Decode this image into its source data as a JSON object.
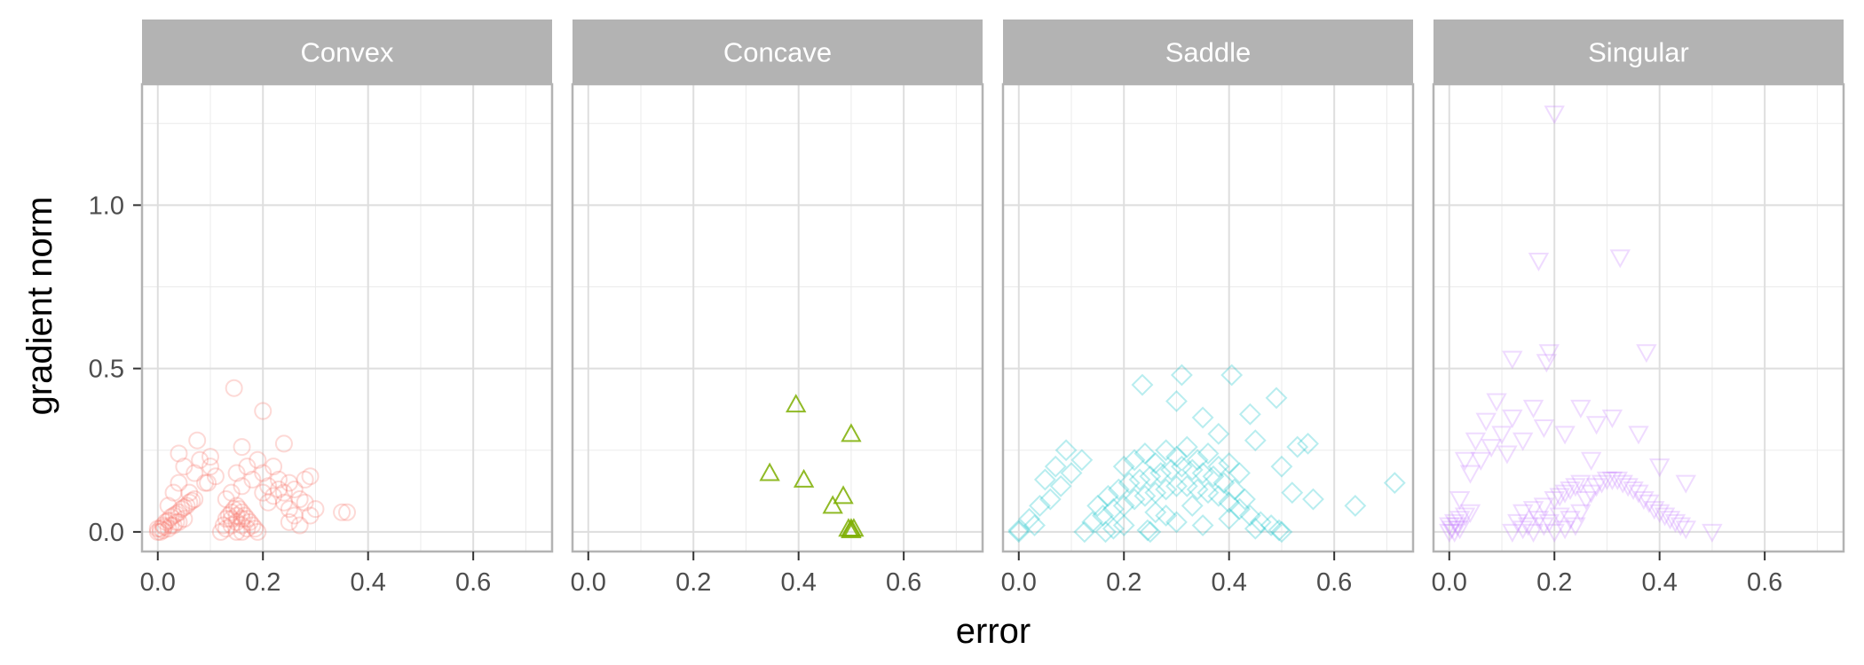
{
  "chart_data": {
    "type": "scatter",
    "facet_by": "surface type",
    "xlabel": "error",
    "ylabel": "gradient norm",
    "xlim": [
      -0.03,
      0.75
    ],
    "ylim": [
      -0.06,
      1.37
    ],
    "x_ticks": [
      0.0,
      0.2,
      0.4,
      0.6
    ],
    "x_tick_labels": [
      "0.0",
      "0.2",
      "0.4",
      "0.6"
    ],
    "y_ticks": [
      0.0,
      0.5,
      1.0
    ],
    "y_tick_labels": [
      "0.0",
      "0.5",
      "1.0"
    ],
    "grid": true,
    "legend": "none",
    "facets": [
      {
        "name": "Convex",
        "marker": "circle",
        "color": "#f8766d",
        "points": [
          [
            0.0,
            0.0
          ],
          [
            0.005,
            0.01
          ],
          [
            0.01,
            0.02
          ],
          [
            0.015,
            0.03
          ],
          [
            0.02,
            0.035
          ],
          [
            0.025,
            0.045
          ],
          [
            0.03,
            0.05
          ],
          [
            0.035,
            0.055
          ],
          [
            0.04,
            0.06
          ],
          [
            0.045,
            0.07
          ],
          [
            0.05,
            0.075
          ],
          [
            0.055,
            0.08
          ],
          [
            0.06,
            0.09
          ],
          [
            0.065,
            0.095
          ],
          [
            0.07,
            0.1
          ],
          [
            0.01,
            0.005
          ],
          [
            0.02,
            0.01
          ],
          [
            0.03,
            0.02
          ],
          [
            0.04,
            0.03
          ],
          [
            0.05,
            0.04
          ],
          [
            0.0,
            0.01
          ],
          [
            0.005,
            0.0
          ],
          [
            0.012,
            0.015
          ],
          [
            0.025,
            0.02
          ],
          [
            0.035,
            0.03
          ],
          [
            0.02,
            0.08
          ],
          [
            0.03,
            0.12
          ],
          [
            0.04,
            0.15
          ],
          [
            0.05,
            0.2
          ],
          [
            0.06,
            0.12
          ],
          [
            0.07,
            0.18
          ],
          [
            0.08,
            0.22
          ],
          [
            0.09,
            0.15
          ],
          [
            0.1,
            0.2
          ],
          [
            0.11,
            0.17
          ],
          [
            0.075,
            0.28
          ],
          [
            0.04,
            0.24
          ],
          [
            0.12,
            0.0
          ],
          [
            0.125,
            0.02
          ],
          [
            0.13,
            0.04
          ],
          [
            0.135,
            0.05
          ],
          [
            0.14,
            0.06
          ],
          [
            0.145,
            0.07
          ],
          [
            0.15,
            0.08
          ],
          [
            0.155,
            0.07
          ],
          [
            0.16,
            0.06
          ],
          [
            0.165,
            0.05
          ],
          [
            0.17,
            0.04
          ],
          [
            0.175,
            0.03
          ],
          [
            0.18,
            0.02
          ],
          [
            0.185,
            0.01
          ],
          [
            0.19,
            0.0
          ],
          [
            0.13,
            0.01
          ],
          [
            0.14,
            0.02
          ],
          [
            0.15,
            0.03
          ],
          [
            0.16,
            0.02
          ],
          [
            0.17,
            0.01
          ],
          [
            0.15,
            0.0
          ],
          [
            0.16,
            0.0
          ],
          [
            0.14,
            0.04
          ],
          [
            0.15,
            0.05
          ],
          [
            0.16,
            0.04
          ],
          [
            0.13,
            0.1
          ],
          [
            0.14,
            0.12
          ],
          [
            0.15,
            0.18
          ],
          [
            0.16,
            0.14
          ],
          [
            0.17,
            0.2
          ],
          [
            0.18,
            0.16
          ],
          [
            0.19,
            0.22
          ],
          [
            0.2,
            0.18
          ],
          [
            0.21,
            0.14
          ],
          [
            0.22,
            0.2
          ],
          [
            0.23,
            0.16
          ],
          [
            0.24,
            0.12
          ],
          [
            0.25,
            0.15
          ],
          [
            0.26,
            0.13
          ],
          [
            0.27,
            0.1
          ],
          [
            0.28,
            0.16
          ],
          [
            0.29,
            0.17
          ],
          [
            0.2,
            0.12
          ],
          [
            0.21,
            0.09
          ],
          [
            0.22,
            0.11
          ],
          [
            0.23,
            0.13
          ],
          [
            0.24,
            0.09
          ],
          [
            0.25,
            0.07
          ],
          [
            0.26,
            0.05
          ],
          [
            0.27,
            0.02
          ],
          [
            0.145,
            0.44
          ],
          [
            0.2,
            0.37
          ],
          [
            0.16,
            0.26
          ],
          [
            0.24,
            0.27
          ],
          [
            0.095,
            0.15
          ],
          [
            0.1,
            0.23
          ],
          [
            0.35,
            0.06
          ],
          [
            0.36,
            0.06
          ],
          [
            0.3,
            0.07
          ],
          [
            0.29,
            0.05
          ],
          [
            0.25,
            0.03
          ],
          [
            0.28,
            0.09
          ]
        ]
      },
      {
        "name": "Concave",
        "marker": "triangle",
        "color": "#7cae00",
        "points": [
          [
            0.395,
            0.39
          ],
          [
            0.5,
            0.3
          ],
          [
            0.345,
            0.18
          ],
          [
            0.41,
            0.16
          ],
          [
            0.485,
            0.11
          ],
          [
            0.465,
            0.08
          ],
          [
            0.495,
            0.01
          ],
          [
            0.5,
            0.01
          ],
          [
            0.505,
            0.01
          ],
          [
            0.5,
            0.005
          ]
        ]
      },
      {
        "name": "Saddle",
        "marker": "diamond",
        "color": "#00bfc4",
        "points": [
          [
            0.0,
            0.0
          ],
          [
            0.0,
            0.005
          ],
          [
            0.5,
            0.0
          ],
          [
            0.495,
            0.005
          ],
          [
            0.125,
            0.0
          ],
          [
            0.165,
            0.0
          ],
          [
            0.25,
            0.0
          ],
          [
            0.245,
            0.005
          ],
          [
            0.14,
            0.03
          ],
          [
            0.16,
            0.05
          ],
          [
            0.18,
            0.07
          ],
          [
            0.2,
            0.08
          ],
          [
            0.22,
            0.1
          ],
          [
            0.24,
            0.11
          ],
          [
            0.26,
            0.12
          ],
          [
            0.28,
            0.13
          ],
          [
            0.3,
            0.14
          ],
          [
            0.32,
            0.14
          ],
          [
            0.34,
            0.13
          ],
          [
            0.36,
            0.12
          ],
          [
            0.38,
            0.11
          ],
          [
            0.4,
            0.09
          ],
          [
            0.42,
            0.07
          ],
          [
            0.44,
            0.05
          ],
          [
            0.46,
            0.03
          ],
          [
            0.48,
            0.02
          ],
          [
            0.15,
            0.08
          ],
          [
            0.17,
            0.11
          ],
          [
            0.19,
            0.13
          ],
          [
            0.21,
            0.15
          ],
          [
            0.23,
            0.16
          ],
          [
            0.25,
            0.17
          ],
          [
            0.27,
            0.18
          ],
          [
            0.29,
            0.19
          ],
          [
            0.31,
            0.2
          ],
          [
            0.33,
            0.19
          ],
          [
            0.35,
            0.18
          ],
          [
            0.37,
            0.17
          ],
          [
            0.39,
            0.15
          ],
          [
            0.41,
            0.13
          ],
          [
            0.43,
            0.1
          ],
          [
            0.2,
            0.2
          ],
          [
            0.22,
            0.22
          ],
          [
            0.24,
            0.24
          ],
          [
            0.26,
            0.21
          ],
          [
            0.28,
            0.25
          ],
          [
            0.3,
            0.23
          ],
          [
            0.32,
            0.26
          ],
          [
            0.34,
            0.22
          ],
          [
            0.36,
            0.24
          ],
          [
            0.38,
            0.2
          ],
          [
            0.4,
            0.21
          ],
          [
            0.42,
            0.18
          ],
          [
            0.02,
            0.04
          ],
          [
            0.04,
            0.08
          ],
          [
            0.06,
            0.1
          ],
          [
            0.08,
            0.14
          ],
          [
            0.1,
            0.18
          ],
          [
            0.12,
            0.22
          ],
          [
            0.07,
            0.2
          ],
          [
            0.05,
            0.16
          ],
          [
            0.09,
            0.25
          ],
          [
            0.03,
            0.02
          ],
          [
            0.235,
            0.45
          ],
          [
            0.31,
            0.48
          ],
          [
            0.405,
            0.48
          ],
          [
            0.3,
            0.4
          ],
          [
            0.35,
            0.35
          ],
          [
            0.44,
            0.36
          ],
          [
            0.49,
            0.41
          ],
          [
            0.38,
            0.3
          ],
          [
            0.45,
            0.28
          ],
          [
            0.5,
            0.2
          ],
          [
            0.53,
            0.26
          ],
          [
            0.55,
            0.27
          ],
          [
            0.56,
            0.1
          ],
          [
            0.64,
            0.08
          ],
          [
            0.715,
            0.15
          ],
          [
            0.52,
            0.12
          ],
          [
            0.2,
            0.02
          ],
          [
            0.3,
            0.03
          ],
          [
            0.35,
            0.02
          ],
          [
            0.4,
            0.04
          ],
          [
            0.45,
            0.01
          ],
          [
            0.18,
            0.01
          ],
          [
            0.28,
            0.05
          ],
          [
            0.33,
            0.08
          ],
          [
            0.26,
            0.06
          ]
        ]
      },
      {
        "name": "Singular",
        "marker": "triangle-down",
        "color": "#c77cff",
        "points": [
          [
            0.0,
            0.0
          ],
          [
            0.005,
            0.01
          ],
          [
            0.01,
            0.03
          ],
          [
            0.015,
            0.02
          ],
          [
            0.02,
            0.04
          ],
          [
            0.03,
            0.05
          ],
          [
            0.04,
            0.06
          ],
          [
            0.0,
            0.02
          ],
          [
            0.01,
            0.0
          ],
          [
            0.02,
            0.01
          ],
          [
            0.12,
            0.0
          ],
          [
            0.14,
            0.01
          ],
          [
            0.16,
            0.0
          ],
          [
            0.18,
            0.02
          ],
          [
            0.2,
            0.0
          ],
          [
            0.22,
            0.01
          ],
          [
            0.24,
            0.02
          ],
          [
            0.13,
            0.03
          ],
          [
            0.15,
            0.02
          ],
          [
            0.17,
            0.04
          ],
          [
            0.19,
            0.03
          ],
          [
            0.21,
            0.05
          ],
          [
            0.23,
            0.04
          ],
          [
            0.25,
            0.06
          ],
          [
            0.26,
            0.1
          ],
          [
            0.27,
            0.12
          ],
          [
            0.28,
            0.14
          ],
          [
            0.29,
            0.15
          ],
          [
            0.3,
            0.16
          ],
          [
            0.31,
            0.16
          ],
          [
            0.32,
            0.16
          ],
          [
            0.33,
            0.15
          ],
          [
            0.34,
            0.14
          ],
          [
            0.35,
            0.13
          ],
          [
            0.36,
            0.12
          ],
          [
            0.37,
            0.1
          ],
          [
            0.38,
            0.09
          ],
          [
            0.39,
            0.07
          ],
          [
            0.4,
            0.06
          ],
          [
            0.41,
            0.05
          ],
          [
            0.42,
            0.04
          ],
          [
            0.43,
            0.03
          ],
          [
            0.44,
            0.02
          ],
          [
            0.45,
            0.01
          ],
          [
            0.5,
            0.0
          ],
          [
            0.2,
            0.1
          ],
          [
            0.22,
            0.12
          ],
          [
            0.24,
            0.14
          ],
          [
            0.25,
            0.15
          ],
          [
            0.23,
            0.13
          ],
          [
            0.21,
            0.11
          ],
          [
            0.18,
            0.08
          ],
          [
            0.16,
            0.07
          ],
          [
            0.14,
            0.06
          ],
          [
            0.02,
            0.1
          ],
          [
            0.04,
            0.18
          ],
          [
            0.06,
            0.22
          ],
          [
            0.08,
            0.26
          ],
          [
            0.1,
            0.3
          ],
          [
            0.12,
            0.35
          ],
          [
            0.14,
            0.28
          ],
          [
            0.16,
            0.38
          ],
          [
            0.18,
            0.32
          ],
          [
            0.05,
            0.28
          ],
          [
            0.03,
            0.22
          ],
          [
            0.07,
            0.34
          ],
          [
            0.09,
            0.4
          ],
          [
            0.11,
            0.24
          ],
          [
            0.2,
            1.28
          ],
          [
            0.17,
            0.83
          ],
          [
            0.325,
            0.84
          ],
          [
            0.12,
            0.53
          ],
          [
            0.185,
            0.52
          ],
          [
            0.19,
            0.55
          ],
          [
            0.375,
            0.55
          ],
          [
            0.25,
            0.38
          ],
          [
            0.28,
            0.33
          ],
          [
            0.31,
            0.35
          ],
          [
            0.36,
            0.3
          ],
          [
            0.22,
            0.3
          ],
          [
            0.4,
            0.2
          ],
          [
            0.45,
            0.15
          ],
          [
            0.27,
            0.22
          ]
        ]
      }
    ]
  }
}
